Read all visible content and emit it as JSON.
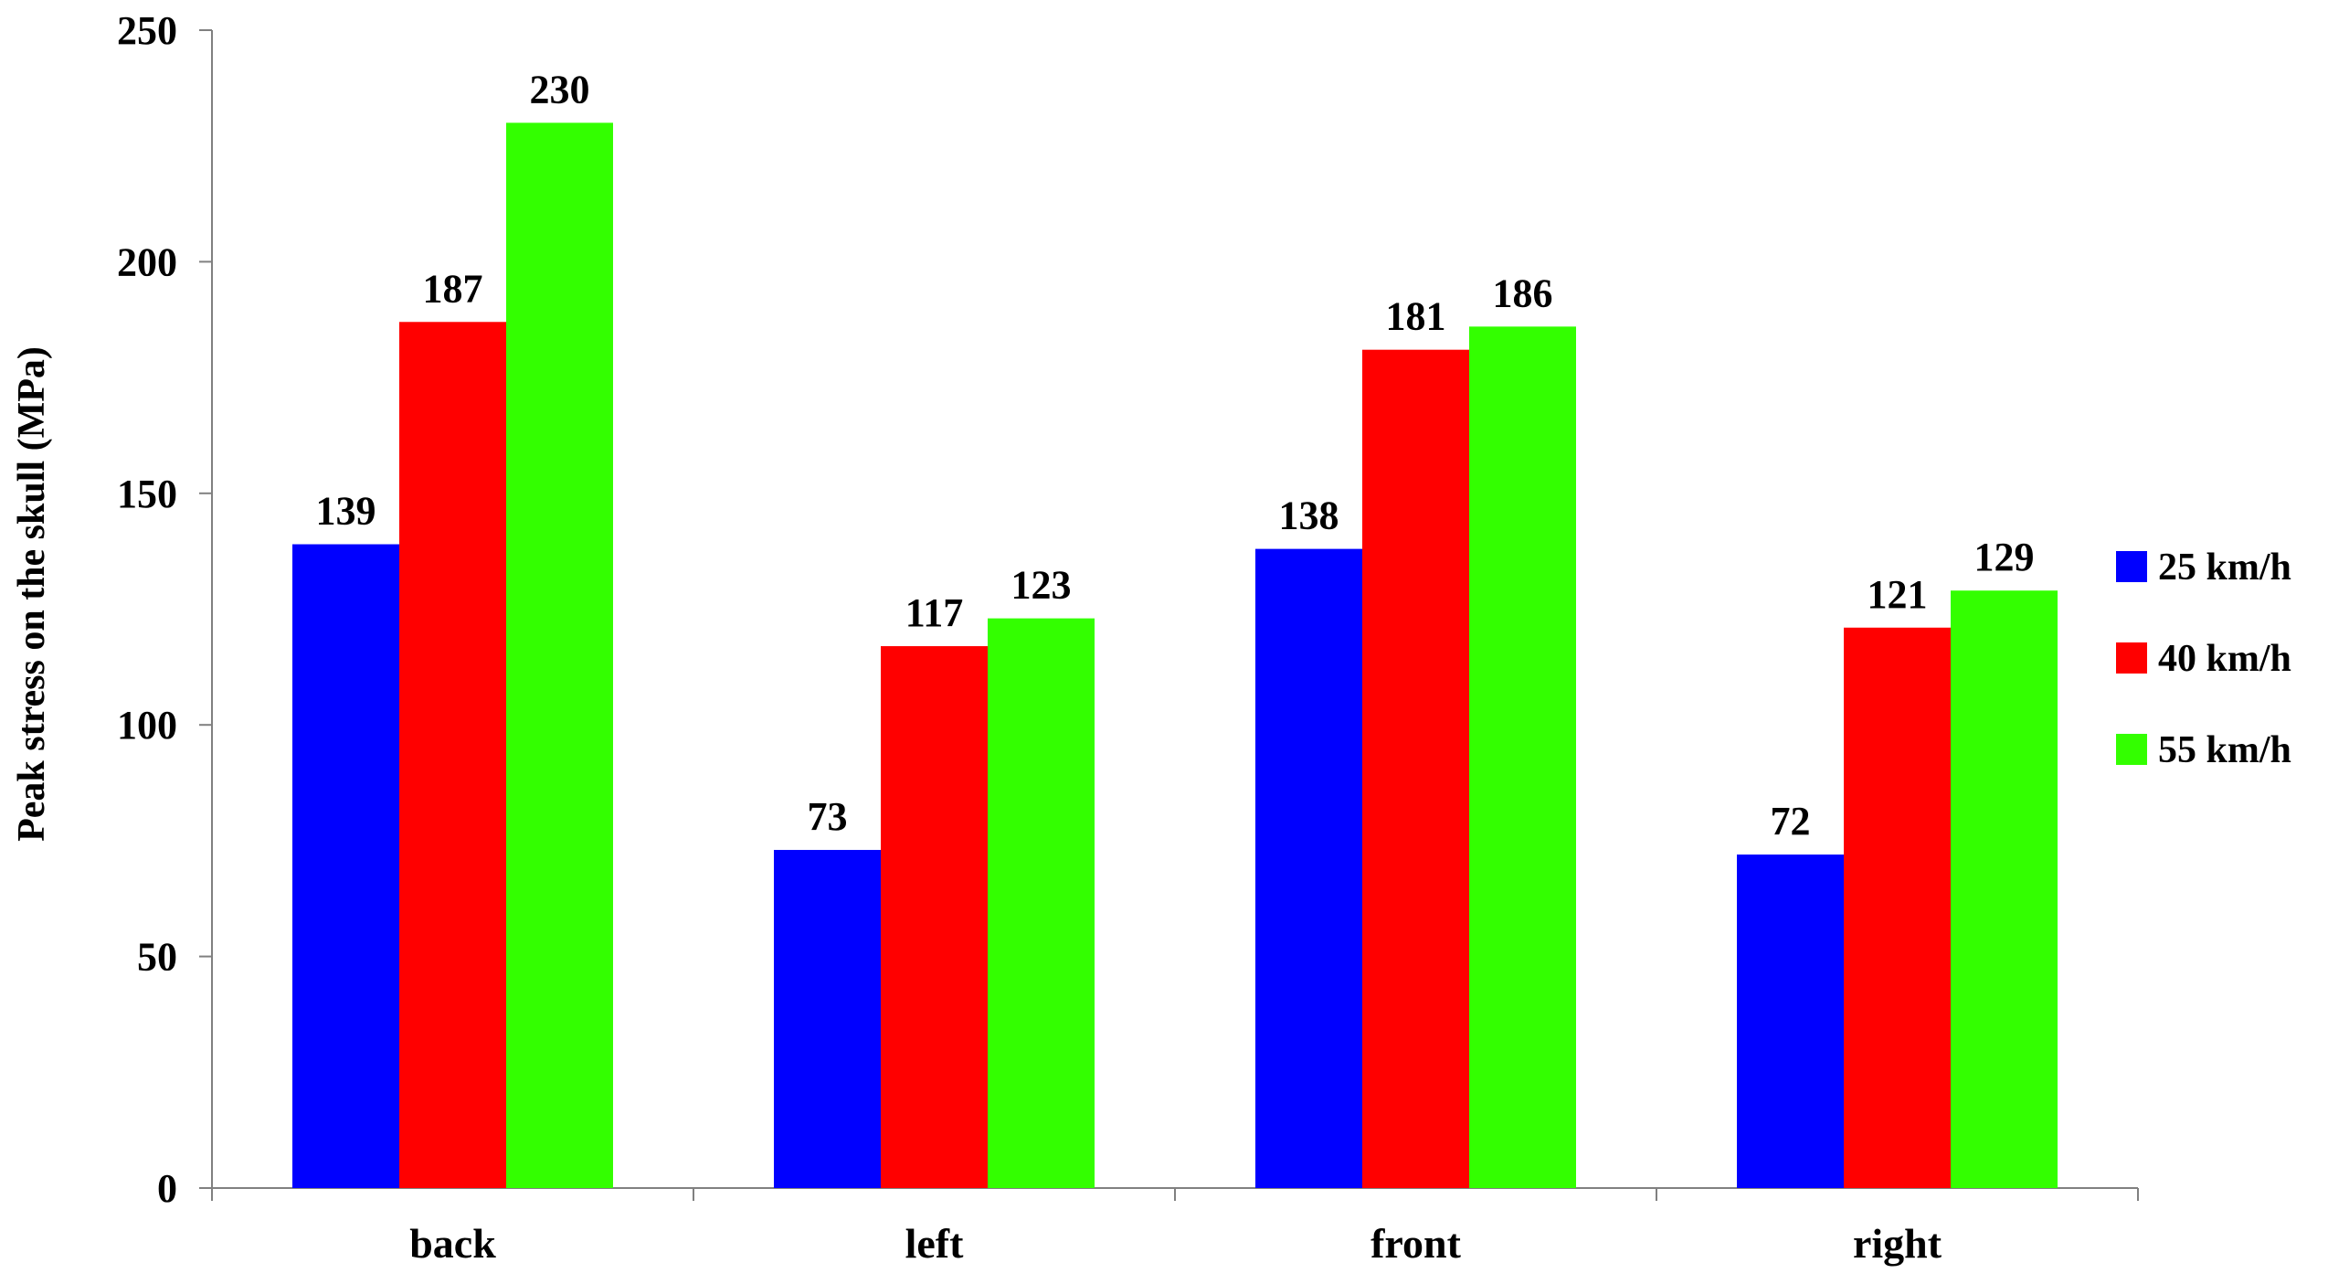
{
  "chart_data": {
    "type": "bar",
    "title": "",
    "xlabel": "",
    "ylabel": "Peak stress on the skull (MPa)",
    "ylim": [
      0,
      250
    ],
    "yticks": [
      0,
      50,
      100,
      150,
      200,
      250
    ],
    "categories": [
      "back",
      "left",
      "front",
      "right"
    ],
    "series": [
      {
        "name": "25 km/h",
        "color": "#0000FF",
        "values": [
          139,
          73,
          138,
          72
        ]
      },
      {
        "name": "40 km/h",
        "color": "#FF0000",
        "values": [
          187,
          117,
          181,
          121
        ]
      },
      {
        "name": "55 km/h",
        "color": "#33FF00",
        "values": [
          230,
          123,
          186,
          129
        ]
      }
    ],
    "data_labels": true,
    "grid": false,
    "legend_position": "right"
  }
}
